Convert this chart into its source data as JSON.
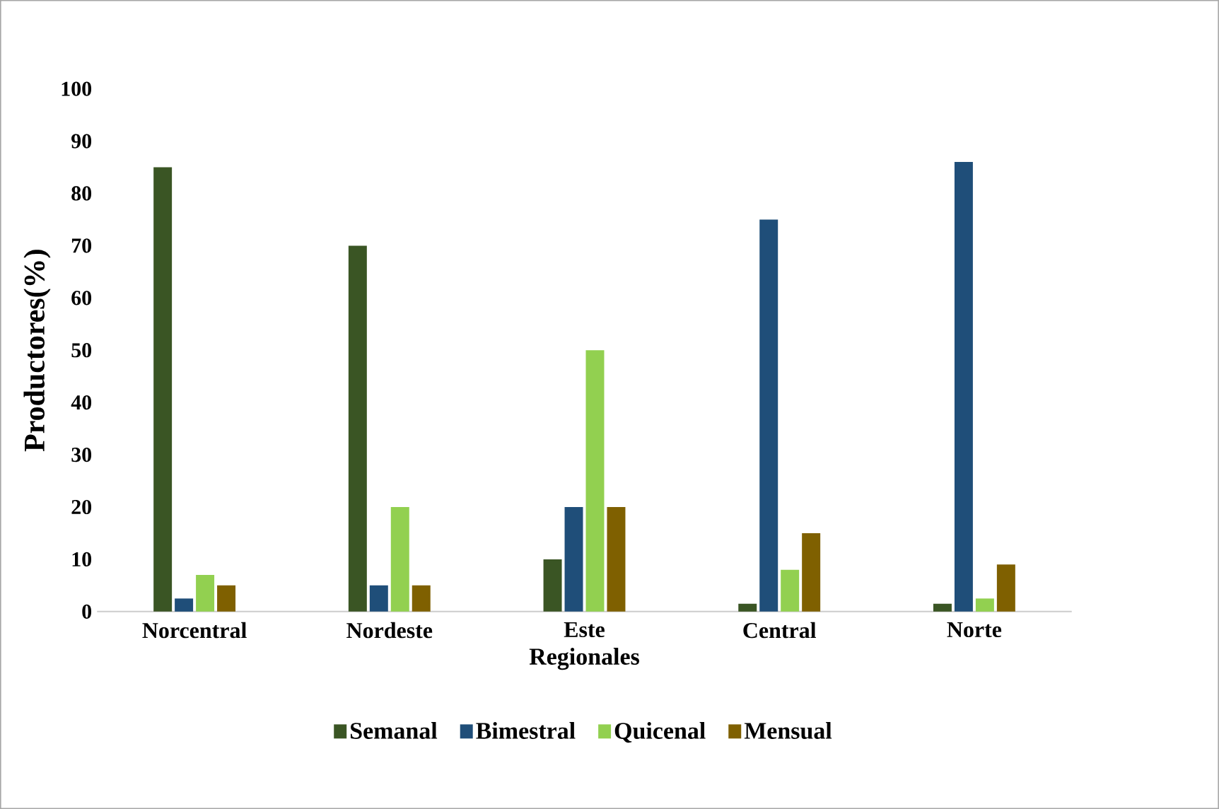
{
  "chart_data": {
    "type": "bar",
    "xlabel": "Regionales",
    "ylabel": "Productores(%)",
    "categories": [
      "Norcentral",
      "Nordeste",
      "Este",
      "Central",
      "Norte"
    ],
    "series": [
      {
        "name": "Semanal",
        "color": "#3a5524",
        "values": [
          85,
          70,
          10,
          1.5,
          1.5
        ]
      },
      {
        "name": "Bimestral",
        "color": "#1f4e79",
        "values": [
          2.5,
          5,
          20,
          75,
          86
        ]
      },
      {
        "name": "Quicenal",
        "color": "#92d050",
        "values": [
          7,
          20,
          50,
          8,
          2.5
        ]
      },
      {
        "name": "Mensual",
        "color": "#7f6000",
        "values": [
          5,
          5,
          20,
          15,
          9
        ]
      }
    ],
    "ylim": [
      0,
      100
    ],
    "yticks": [
      0,
      10,
      20,
      30,
      40,
      50,
      60,
      70,
      80,
      90,
      100
    ],
    "legend": "bottom"
  }
}
